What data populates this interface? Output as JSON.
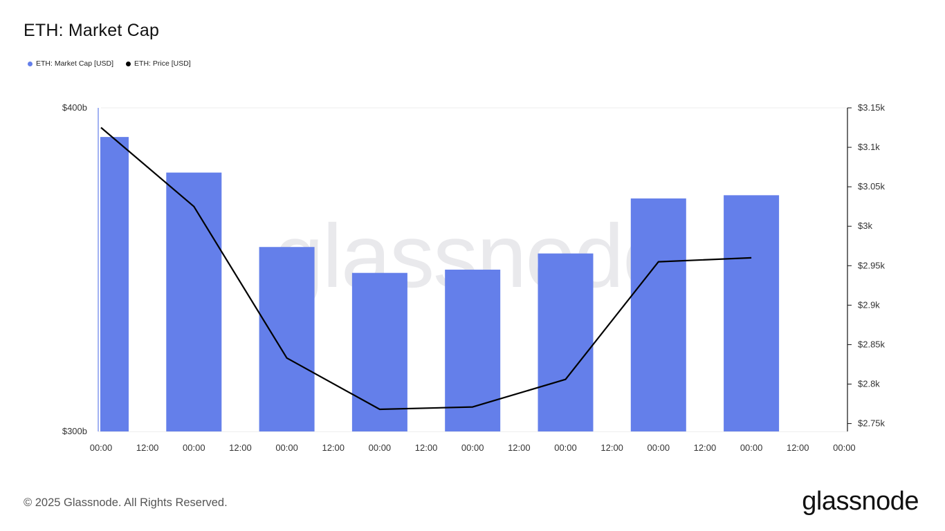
{
  "chart_data": {
    "type": "bar",
    "title": "ETH: Market Cap",
    "legend_placement": "top-left",
    "grid": false,
    "watermark": "glassnode",
    "x_tick_labels": [
      "00:00",
      "12:00",
      "00:00",
      "12:00",
      "00:00",
      "12:00",
      "00:00",
      "12:00",
      "00:00",
      "12:00",
      "00:00",
      "12:00",
      "00:00",
      "12:00",
      "00:00",
      "12:00",
      "00:00"
    ],
    "bar_tick_index": [
      0,
      2,
      4,
      6,
      8,
      10,
      12,
      14
    ],
    "series": [
      {
        "name": "ETH: Market Cap [USD]",
        "kind": "bar",
        "axis": "left",
        "color": "#647fea",
        "values": [
          391,
          380,
          357,
          349,
          350,
          355,
          372,
          373
        ]
      },
      {
        "name": "ETH: Price [USD]",
        "kind": "line",
        "axis": "right",
        "color": "#000000",
        "values": [
          3125,
          3025,
          2833,
          2768,
          2771,
          2806,
          2955,
          2960
        ]
      }
    ],
    "y_left": {
      "ylim": [
        300,
        400
      ],
      "tick_labels": [
        "$300b",
        "$400b"
      ],
      "tick_values": [
        300,
        400
      ]
    },
    "y_right": {
      "ylim": [
        2740,
        3150
      ],
      "tick_labels": [
        "$2.75k",
        "$2.8k",
        "$2.85k",
        "$2.9k",
        "$2.95k",
        "$3k",
        "$3.05k",
        "$3.1k",
        "$3.15k"
      ],
      "tick_values": [
        2750,
        2800,
        2850,
        2900,
        2950,
        3000,
        3050,
        3100,
        3150
      ]
    }
  },
  "footer": {
    "copyright": "© 2025 Glassnode. All Rights Reserved."
  },
  "brand": {
    "logo_text": "glassnode"
  },
  "colors": {
    "bar": "#647fea",
    "line": "#000000",
    "axis": "#111111"
  }
}
